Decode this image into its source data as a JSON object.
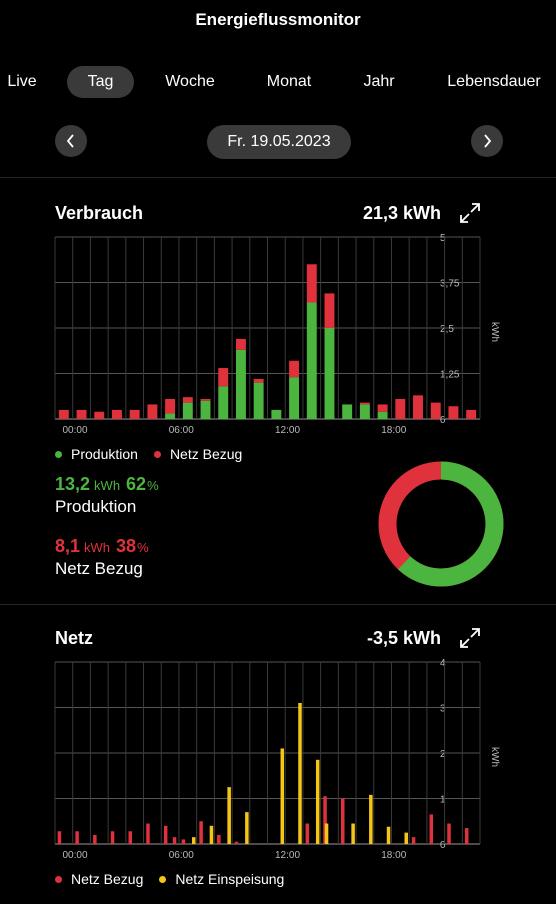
{
  "app": {
    "title": "Energieflussmonitor"
  },
  "tabs": [
    {
      "label": "Live",
      "active": false
    },
    {
      "label": "Tag",
      "active": true
    },
    {
      "label": "Woche",
      "active": false
    },
    {
      "label": "Monat",
      "active": false
    },
    {
      "label": "Jahr",
      "active": false
    },
    {
      "label": "Lebensdauer",
      "active": false
    }
  ],
  "date": {
    "label": "Fr. 19.05.2023",
    "prev_icon": "chevron-left-icon",
    "next_icon": "chevron-right-icon"
  },
  "verbrauch": {
    "title": "Verbrauch",
    "total": "21,3  kWh",
    "legend": [
      {
        "label": "Produktion",
        "color": "#4cb53f"
      },
      {
        "label": "Netz Bezug",
        "color": "#e0323c"
      }
    ],
    "produktion": {
      "value": "13,2",
      "unit": "kWh",
      "percent": "62",
      "percent_sign": "%",
      "label": "Produktion"
    },
    "netz": {
      "value": "8,1",
      "unit": "kWh",
      "percent": "38",
      "percent_sign": "%",
      "label": "Netz Bezug"
    }
  },
  "netz": {
    "title": "Netz",
    "total": "-3,5  kWh",
    "legend": [
      {
        "label": "Netz Bezug",
        "color": "#e0323c"
      },
      {
        "label": "Netz Einspeisung",
        "color": "#f5c518"
      }
    ]
  },
  "colors": {
    "green": "#4cb53f",
    "red": "#e0323c",
    "yellow": "#f5c518"
  },
  "chart_data": [
    {
      "type": "bar",
      "title": "Verbrauch",
      "stacked": true,
      "x_ticks": [
        "00:00",
        "06:00",
        "12:00",
        "18:00"
      ],
      "y_ticks": [
        "5",
        "3,75",
        "2,5",
        "1,25",
        "0"
      ],
      "ylabel": "kWh",
      "ylim": [
        0,
        5
      ],
      "slot_hours": 1,
      "series": [
        {
          "name": "Produktion",
          "color": "#4cb53f",
          "values": [
            0,
            0,
            0,
            0,
            0,
            0,
            0.15,
            0.45,
            0.5,
            0.9,
            1.9,
            1.0,
            0.25,
            1.15,
            3.2,
            2.5,
            0.4,
            0.4,
            0.2,
            0,
            0,
            0,
            0,
            0
          ]
        },
        {
          "name": "Netz Bezug",
          "color": "#e0323c",
          "values": [
            0.25,
            0.25,
            0.2,
            0.25,
            0.25,
            0.4,
            0.4,
            0.15,
            0.05,
            0.5,
            0.3,
            0.1,
            0,
            0.45,
            1.05,
            0.95,
            0,
            0.05,
            0.2,
            0.55,
            0.65,
            0.45,
            0.35,
            0.25
          ]
        }
      ],
      "donut": {
        "Produktion": 62,
        "Netz Bezug": 38
      }
    },
    {
      "type": "bar",
      "title": "Netz",
      "stacked": false,
      "x_ticks": [
        "00:00",
        "06:00",
        "12:00",
        "18:00"
      ],
      "y_ticks": [
        "4",
        "3",
        "2",
        "1",
        "0"
      ],
      "ylabel": "kWh",
      "ylim": [
        0,
        4
      ],
      "slot_hours": 0.5,
      "series": [
        {
          "name": "Netz Bezug",
          "color": "#e0323c",
          "values": [
            0.28,
            0,
            0.28,
            0,
            0.2,
            0,
            0.28,
            0,
            0.28,
            0,
            0.45,
            0,
            0.4,
            0.15,
            0.1,
            0,
            0.5,
            0,
            0.2,
            0,
            0.05,
            0,
            0,
            0,
            0,
            0,
            0,
            0,
            0.45,
            0,
            1.05,
            0,
            1.0,
            0,
            0,
            0,
            0,
            0,
            0,
            0,
            0.15,
            0,
            0.65,
            0,
            0.45,
            0,
            0.35,
            0
          ]
        },
        {
          "name": "Netz Einspeisung",
          "color": "#f5c518",
          "values": [
            0,
            0,
            0,
            0,
            0,
            0,
            0,
            0,
            0,
            0,
            0,
            0,
            0,
            0,
            0,
            0.15,
            0,
            0.4,
            0,
            1.25,
            0,
            0.7,
            0,
            0,
            0,
            2.1,
            0,
            3.1,
            0,
            1.85,
            0.45,
            0,
            0,
            0.45,
            0,
            1.08,
            0,
            0.38,
            0,
            0.25,
            0,
            0,
            0,
            0,
            0,
            0,
            0,
            0
          ]
        }
      ]
    }
  ]
}
